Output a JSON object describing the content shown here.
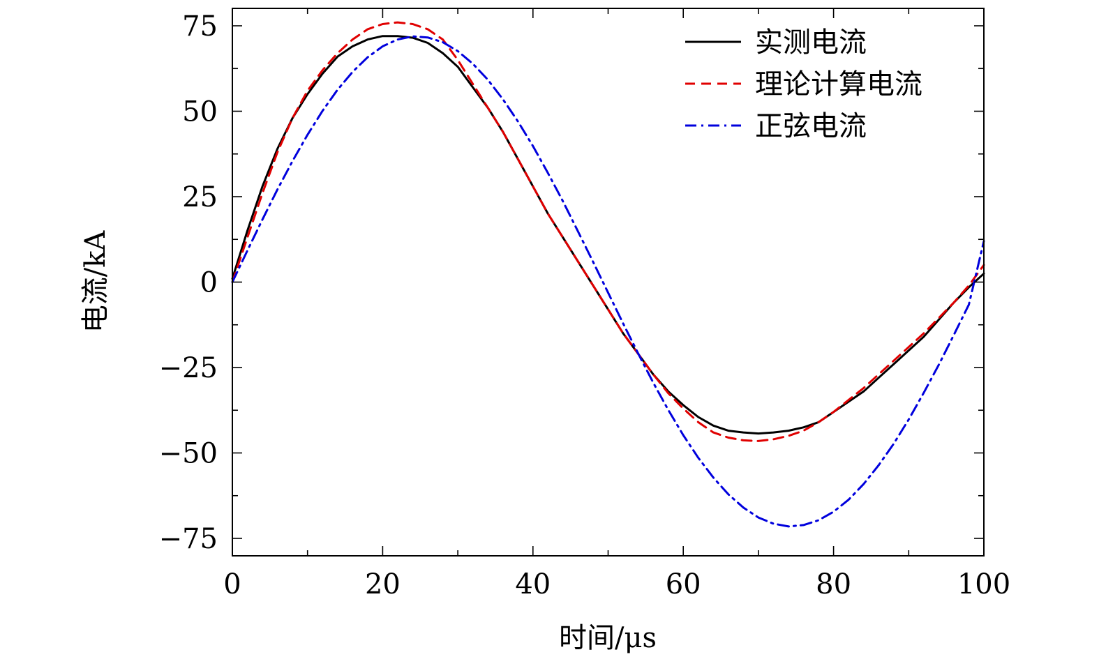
{
  "chart_data": {
    "type": "line",
    "title": "",
    "xlabel": "时间/μs",
    "ylabel": "电流/kA",
    "xlim": [
      0,
      100
    ],
    "ylim": [
      -80,
      80
    ],
    "xticks": [
      0,
      20,
      40,
      60,
      80,
      100
    ],
    "xtick_labels": [
      "0",
      "20",
      "40",
      "60",
      "80",
      "100"
    ],
    "yticks": [
      75,
      50,
      25,
      0,
      -25,
      -50,
      -75
    ],
    "ytick_labels": [
      "75",
      "50",
      "25",
      "0",
      "−25",
      "−50",
      "−75"
    ],
    "grid": false,
    "legend_position": "top-right",
    "series": [
      {
        "name": "实测电流",
        "color": "#000000",
        "dash": "solid",
        "x": [
          0,
          2,
          4,
          6,
          8,
          10,
          12,
          14,
          16,
          18,
          20,
          22,
          24,
          26,
          28,
          30,
          32,
          34,
          36,
          38,
          40,
          42,
          44,
          46,
          48,
          50,
          52,
          54,
          56,
          58,
          60,
          62,
          64,
          66,
          68,
          70,
          72,
          74,
          76,
          78,
          80,
          82,
          84,
          86,
          88,
          90,
          92,
          94,
          96,
          98,
          100
        ],
        "y": [
          1,
          15,
          28,
          39,
          48,
          55,
          61,
          66,
          69,
          71,
          72,
          72,
          71.5,
          70,
          67,
          63,
          57,
          51,
          44,
          36,
          28,
          20,
          13,
          6,
          -1,
          -8,
          -15,
          -21,
          -27,
          -32,
          -36,
          -39.5,
          -42,
          -43.5,
          -44,
          -44.3,
          -44,
          -43.5,
          -42.5,
          -41,
          -38,
          -35,
          -32,
          -28,
          -24,
          -20,
          -16,
          -11,
          -6,
          -1.5,
          2.5
        ]
      },
      {
        "name": "理论计算电流",
        "color": "#e00000",
        "dash": "dashed",
        "x": [
          0,
          2,
          4,
          6,
          8,
          10,
          12,
          14,
          16,
          18,
          20,
          22,
          24,
          26,
          28,
          30,
          32,
          34,
          36,
          38,
          40,
          42,
          44,
          46,
          48,
          50,
          52,
          54,
          56,
          58,
          60,
          62,
          64,
          66,
          68,
          70,
          72,
          74,
          76,
          78,
          80,
          82,
          84,
          86,
          88,
          90,
          92,
          94,
          96,
          98,
          100
        ],
        "y": [
          0,
          13,
          26,
          38,
          48,
          56,
          62,
          67,
          71,
          74,
          75.5,
          76,
          75.5,
          74,
          71,
          65,
          58,
          51,
          44,
          36,
          28,
          20,
          13,
          6,
          -1,
          -8,
          -15,
          -21,
          -27,
          -32.5,
          -37,
          -41,
          -44,
          -45.5,
          -46.3,
          -46.5,
          -46,
          -45,
          -43.5,
          -41,
          -38,
          -34.5,
          -31,
          -27,
          -23,
          -19,
          -15,
          -10.5,
          -6,
          -1,
          5
        ]
      },
      {
        "name": "正弦电流",
        "color": "#0000dd",
        "dash": "dashdot",
        "x": [
          0,
          2,
          4,
          6,
          8,
          10,
          12,
          14,
          16,
          18,
          20,
          22,
          24,
          26,
          28,
          30,
          32,
          34,
          36,
          38,
          40,
          42,
          44,
          46,
          48,
          50,
          52,
          54,
          56,
          58,
          60,
          62,
          64,
          66,
          68,
          70,
          72,
          74,
          76,
          78,
          80,
          82,
          84,
          86,
          88,
          90,
          92,
          94,
          96,
          98,
          100
        ],
        "y": [
          0,
          9.2,
          18.3,
          27.1,
          35.4,
          43.1,
          50.1,
          56.3,
          61.5,
          65.8,
          69.0,
          71.0,
          71.9,
          71.6,
          70.2,
          67.6,
          63.9,
          59.2,
          53.5,
          47.0,
          39.8,
          31.9,
          23.6,
          14.8,
          5.9,
          -3.1,
          -12.1,
          -20.9,
          -29.4,
          -37.4,
          -44.8,
          -51.4,
          -57.2,
          -62.1,
          -66.0,
          -68.9,
          -70.7,
          -71.5,
          -71.1,
          -69.7,
          -67.2,
          -63.7,
          -59.1,
          -53.6,
          -47.3,
          -40.2,
          -32.4,
          -24.2,
          -15.5,
          -6.6,
          12
        ]
      }
    ]
  }
}
